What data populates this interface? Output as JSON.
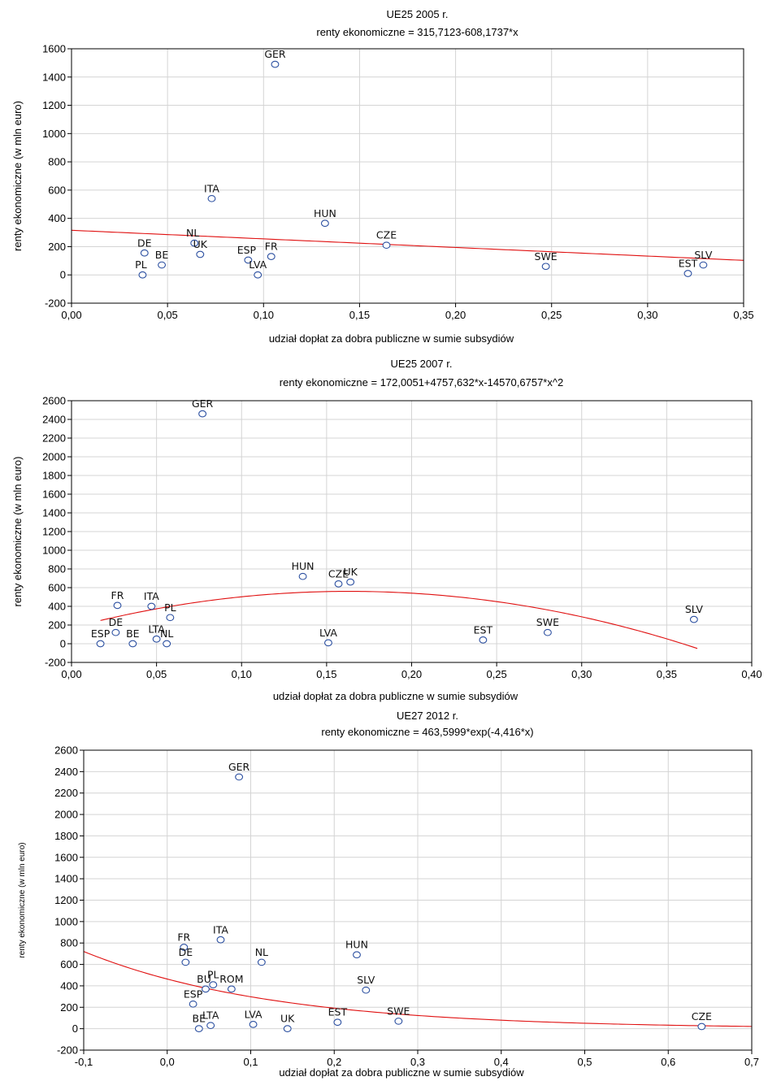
{
  "chart_data": [
    {
      "type": "scatter",
      "title": "UE25 2005 r.",
      "subtitle": "renty ekonomiczne = 315,7123-608,1737*x",
      "xlabel": "udział dopłat za dobra publiczne w sumie subsydiów",
      "ylabel": "renty ekonomiczne (w mln euro)",
      "xlim": [
        0,
        0.35
      ],
      "ylim": [
        -200,
        1600
      ],
      "xticks": [
        0,
        0.05,
        0.1,
        0.15,
        0.2,
        0.25,
        0.3,
        0.35
      ],
      "xtick_labels": [
        "0,00",
        "0,05",
        "0,10",
        "0,15",
        "0,20",
        "0,25",
        "0,30",
        "0,35"
      ],
      "yticks": [
        -200,
        0,
        200,
        400,
        600,
        800,
        1000,
        1200,
        1400,
        1600
      ],
      "ytick_labels": [
        "-200",
        "0",
        "200",
        "400",
        "600",
        "800",
        "1000",
        "1200",
        "1400",
        "1600"
      ],
      "grid": true,
      "colors": {
        "marker": "#2b4fa0",
        "fit": "#e01010"
      },
      "fit": {
        "kind": "linear",
        "a": 315.7123,
        "b": -608.1737,
        "x_range": [
          0,
          0.35
        ]
      },
      "points": [
        {
          "label": "GER",
          "x": 0.106,
          "y": 1490
        },
        {
          "label": "ITA",
          "x": 0.073,
          "y": 540
        },
        {
          "label": "HUN",
          "x": 0.132,
          "y": 365
        },
        {
          "label": "CZE",
          "x": 0.164,
          "y": 210
        },
        {
          "label": "NL",
          "x": 0.064,
          "y": 225
        },
        {
          "label": "UK",
          "x": 0.067,
          "y": 145
        },
        {
          "label": "DE",
          "x": 0.038,
          "y": 155
        },
        {
          "label": "BE",
          "x": 0.047,
          "y": 70
        },
        {
          "label": "PL",
          "x": 0.037,
          "y": 0
        },
        {
          "label": "ESP",
          "x": 0.092,
          "y": 105
        },
        {
          "label": "FR",
          "x": 0.104,
          "y": 130
        },
        {
          "label": "LVA",
          "x": 0.097,
          "y": 0
        },
        {
          "label": "SWE",
          "x": 0.247,
          "y": 60
        },
        {
          "label": "EST",
          "x": 0.321,
          "y": 10
        },
        {
          "label": "SLV",
          "x": 0.329,
          "y": 70
        }
      ]
    },
    {
      "type": "scatter",
      "title": "UE25 2007 r.",
      "subtitle": "renty ekonomiczne = 172,0051+4757,632*x-14570,6757*x^2",
      "xlabel": "udział dopłat za dobra publiczne w sumie subsydiów",
      "ylabel": "renty ekonomiczne (w mln euro)",
      "xlim": [
        0,
        0.4
      ],
      "ylim": [
        -200,
        2600
      ],
      "xticks": [
        0,
        0.05,
        0.1,
        0.15,
        0.2,
        0.25,
        0.3,
        0.35,
        0.4
      ],
      "xtick_labels": [
        "0,00",
        "0,05",
        "0,10",
        "0,15",
        "0,20",
        "0,25",
        "0,30",
        "0,35",
        "0,40"
      ],
      "yticks": [
        -200,
        0,
        200,
        400,
        600,
        800,
        1000,
        1200,
        1400,
        1600,
        1800,
        2000,
        2200,
        2400,
        2600
      ],
      "ytick_labels": [
        "-200",
        "0",
        "200",
        "400",
        "600",
        "800",
        "1000",
        "1200",
        "1400",
        "1600",
        "1800",
        "2000",
        "2200",
        "2400",
        "2600"
      ],
      "grid": true,
      "colors": {
        "marker": "#2b4fa0",
        "fit": "#e01010"
      },
      "fit": {
        "kind": "quadratic",
        "a": 172.0051,
        "b": 4757.632,
        "c": -14570.6757,
        "x_range": [
          0.017,
          0.368
        ]
      },
      "points": [
        {
          "label": "GER",
          "x": 0.077,
          "y": 2460
        },
        {
          "label": "HUN",
          "x": 0.136,
          "y": 720
        },
        {
          "label": "CZE",
          "x": 0.157,
          "y": 640
        },
        {
          "label": "UK",
          "x": 0.164,
          "y": 660
        },
        {
          "label": "FR",
          "x": 0.027,
          "y": 410
        },
        {
          "label": "ITA",
          "x": 0.047,
          "y": 400
        },
        {
          "label": "PL",
          "x": 0.058,
          "y": 280
        },
        {
          "label": "DE",
          "x": 0.026,
          "y": 120
        },
        {
          "label": "ESP",
          "x": 0.017,
          "y": 0
        },
        {
          "label": "BE",
          "x": 0.036,
          "y": 0
        },
        {
          "label": "LTA",
          "x": 0.05,
          "y": 50
        },
        {
          "label": "NL",
          "x": 0.056,
          "y": 0
        },
        {
          "label": "LVA",
          "x": 0.151,
          "y": 10
        },
        {
          "label": "EST",
          "x": 0.242,
          "y": 40
        },
        {
          "label": "SWE",
          "x": 0.28,
          "y": 120
        },
        {
          "label": "SLV",
          "x": 0.366,
          "y": 260
        }
      ]
    },
    {
      "type": "scatter",
      "title": "UE27 2012 r.",
      "subtitle": "renty ekonomiczne = 463,5999*exp(-4,416*x)",
      "xlabel": "udział dopłat za dobra publiczne w sumie subsydiów",
      "ylabel": "renty ekonomiczne (w mln euro)",
      "xlim": [
        -0.1,
        0.7
      ],
      "ylim": [
        -200,
        2600
      ],
      "xticks": [
        -0.1,
        0,
        0.1,
        0.2,
        0.3,
        0.4,
        0.5,
        0.6,
        0.7
      ],
      "xtick_labels": [
        "-0,1",
        "0,0",
        "0,1",
        "0,2",
        "0,3",
        "0,4",
        "0,5",
        "0,6",
        "0,7"
      ],
      "yticks": [
        -200,
        0,
        200,
        400,
        600,
        800,
        1000,
        1200,
        1400,
        1600,
        1800,
        2000,
        2200,
        2400,
        2600
      ],
      "ytick_labels": [
        "-200",
        "0",
        "200",
        "400",
        "600",
        "800",
        "1000",
        "1200",
        "1400",
        "1600",
        "1800",
        "2000",
        "2200",
        "2400",
        "2600"
      ],
      "grid": true,
      "colors": {
        "marker": "#2b4fa0",
        "fit": "#e01010"
      },
      "fit": {
        "kind": "exponential",
        "a": 463.5999,
        "k": -4.416,
        "x_range": [
          -0.1,
          0.7
        ]
      },
      "points": [
        {
          "label": "GER",
          "x": 0.086,
          "y": 2350
        },
        {
          "label": "ITA",
          "x": 0.064,
          "y": 830
        },
        {
          "label": "FR",
          "x": 0.02,
          "y": 760
        },
        {
          "label": "DE",
          "x": 0.022,
          "y": 620
        },
        {
          "label": "NL",
          "x": 0.113,
          "y": 620
        },
        {
          "label": "HUN",
          "x": 0.227,
          "y": 690
        },
        {
          "label": "PL",
          "x": 0.055,
          "y": 410
        },
        {
          "label": "BU",
          "x": 0.046,
          "y": 370
        },
        {
          "label": "ROM",
          "x": 0.077,
          "y": 370
        },
        {
          "label": "SLV",
          "x": 0.238,
          "y": 360
        },
        {
          "label": "ESP",
          "x": 0.031,
          "y": 230
        },
        {
          "label": "BE",
          "x": 0.038,
          "y": 0
        },
        {
          "label": "LTA",
          "x": 0.052,
          "y": 30
        },
        {
          "label": "LVA",
          "x": 0.103,
          "y": 40
        },
        {
          "label": "UK",
          "x": 0.144,
          "y": 0
        },
        {
          "label": "EST",
          "x": 0.204,
          "y": 60
        },
        {
          "label": "SWE",
          "x": 0.277,
          "y": 70
        },
        {
          "label": "CZE",
          "x": 0.64,
          "y": 20
        }
      ]
    }
  ]
}
